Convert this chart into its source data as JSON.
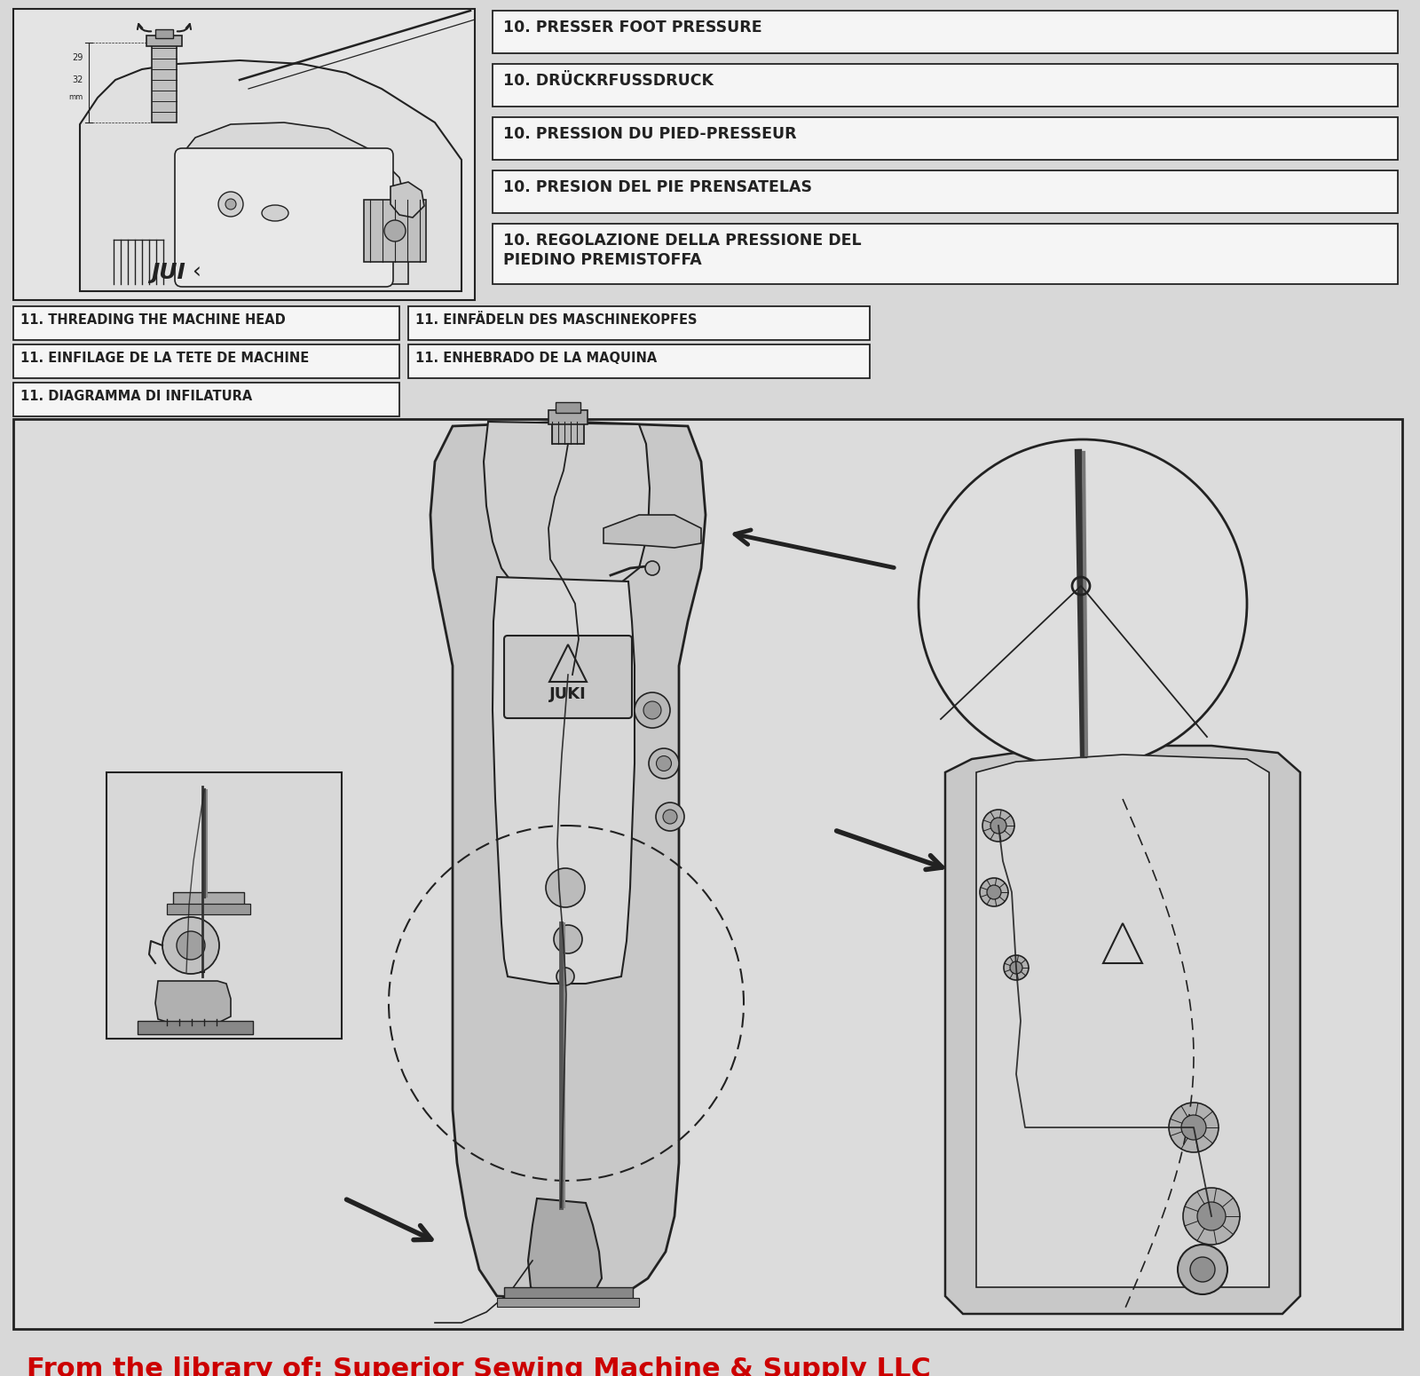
{
  "bg_color": "#d8d8d8",
  "box_bg": "#e8e8e8",
  "white": "#f5f5f5",
  "black": "#222222",
  "dark": "#333333",
  "mid_gray": "#aaaaaa",
  "light_gray": "#cccccc",
  "red": "#cc0000",
  "section10_labels": [
    "10. PRESSER FOOT PRESSURE",
    "10. DRÜCKRFUSSDRUCK",
    "10. PRESSION DU PIED-PRESSEUR",
    "10. PRESION DEL PIE PRENSATELAS",
    "10. REGOLAZIONE DELLA PRESSIONE DEL",
    "    PIEDINO PREMISTOFFA"
  ],
  "section11_row1": [
    "11. THREADING THE MACHINE HEAD",
    "11. EINFÄDELN DES MASCHINEKOPFES"
  ],
  "section11_row2": [
    "11. EINFILAGE DE LA TETE DE MACHINE",
    "11. ENHEBRADO DE LA MAQUINA"
  ],
  "section11_row3": [
    "11. DIAGRAMMA DI INFILATURA"
  ],
  "watermark": "From the library of: Superior Sewing Machine & Supply LLC"
}
